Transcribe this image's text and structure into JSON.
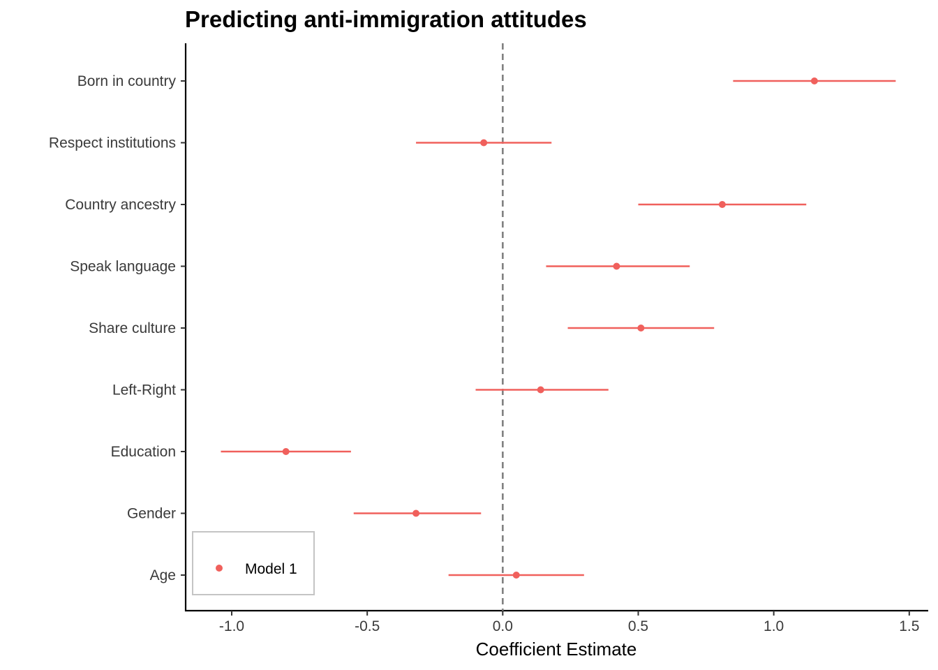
{
  "chart_data": {
    "type": "scatter",
    "subtype": "coefficient-plot",
    "title": "Predicting anti-immigration attitudes",
    "xlabel": "Coefficient Estimate",
    "ylabel": "",
    "xlim": [
      -1.17,
      1.57
    ],
    "xticks": [
      -1.0,
      -0.5,
      0.0,
      0.5,
      1.0,
      1.5
    ],
    "xtick_labels": [
      "-1.0",
      "-0.5",
      "0.0",
      "0.5",
      "1.0",
      "1.5"
    ],
    "reference_line": {
      "x": 0,
      "style": "dashed",
      "color": "#808080"
    },
    "grid": false,
    "legend": {
      "position": "bottom-left",
      "entries": [
        "Model 1"
      ]
    },
    "categories": [
      "Born in country",
      "Respect institutions",
      "Country ancestry",
      "Speak language",
      "Share culture",
      "Left-Right",
      "Education",
      "Gender",
      "Age"
    ],
    "series": [
      {
        "name": "Model 1",
        "color": "#f0605c",
        "estimates": [
          1.15,
          -0.07,
          0.81,
          0.42,
          0.51,
          0.14,
          -0.8,
          -0.32,
          0.05
        ],
        "ci_low": [
          0.85,
          -0.32,
          0.5,
          0.16,
          0.24,
          -0.1,
          -1.04,
          -0.55,
          -0.2
        ],
        "ci_high": [
          1.45,
          0.18,
          1.12,
          0.69,
          0.78,
          0.39,
          -0.56,
          -0.08,
          0.3
        ]
      }
    ]
  }
}
